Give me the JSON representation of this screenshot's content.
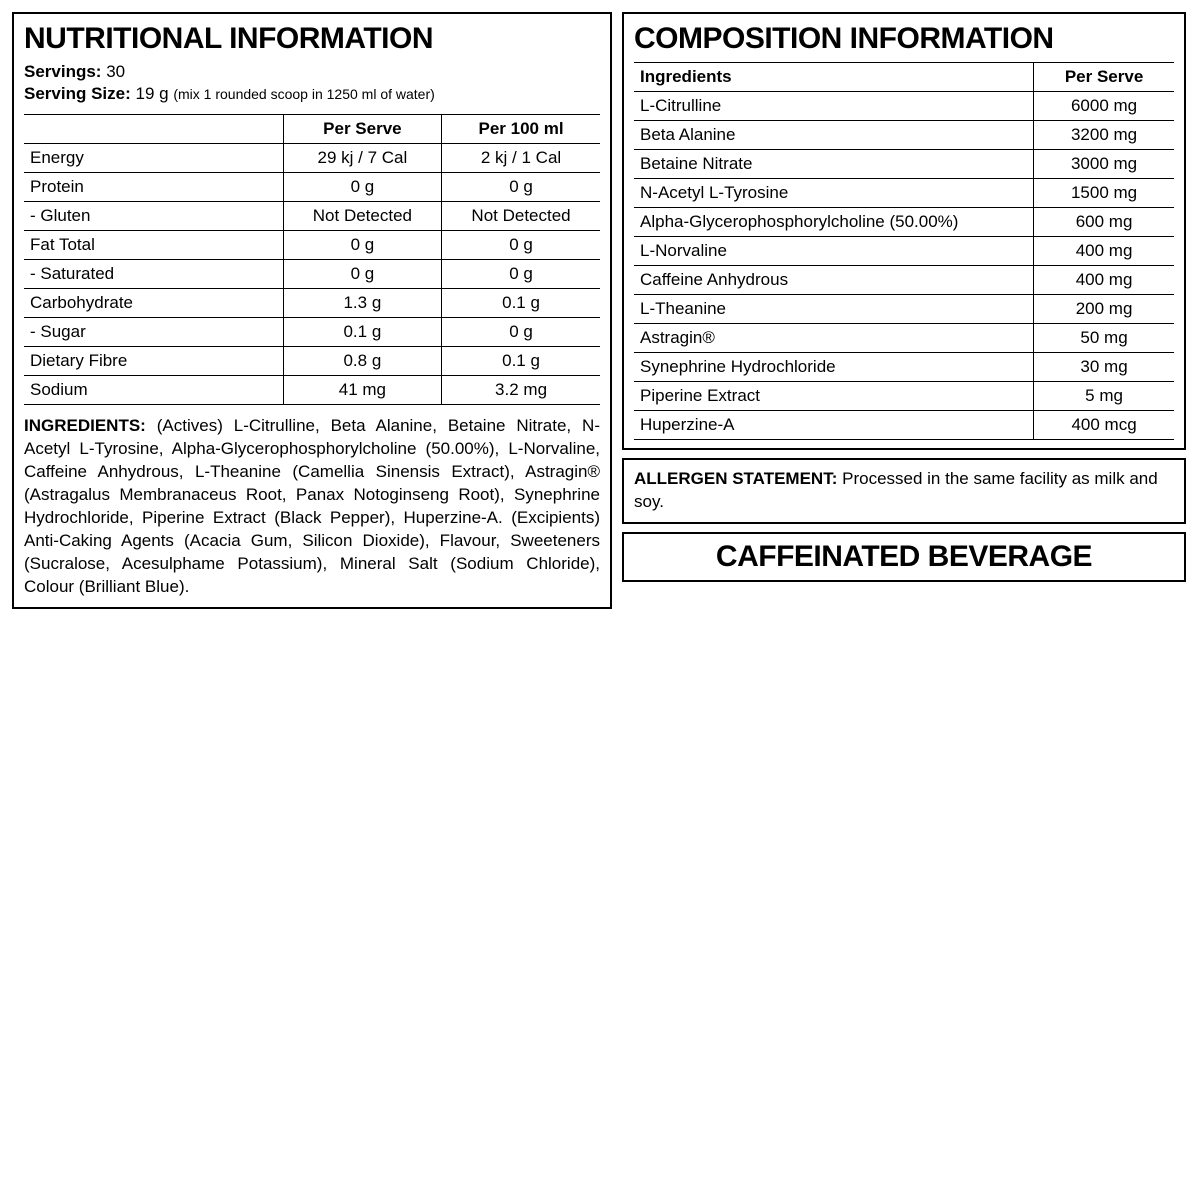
{
  "nutritional": {
    "title": "NUTRITIONAL INFORMATION",
    "servings_label": "Servings:",
    "servings_value": "30",
    "serving_size_label": "Serving Size:",
    "serving_size_value": "19 g",
    "serving_note": "(mix 1 rounded scoop in 1250 ml of water)",
    "headers": {
      "col1": "",
      "col2": "Per Serve",
      "col3": "Per 100 ml"
    },
    "rows": [
      {
        "label": "Energy",
        "serve": "29 kj / 7 Cal",
        "per100": "2 kj / 1 Cal"
      },
      {
        "label": "Protein",
        "serve": "0 g",
        "per100": "0 g"
      },
      {
        "label": "- Gluten",
        "serve": "Not Detected",
        "per100": "Not Detected"
      },
      {
        "label": "Fat Total",
        "serve": "0 g",
        "per100": "0 g"
      },
      {
        "label": "- Saturated",
        "serve": "0 g",
        "per100": "0 g"
      },
      {
        "label": "Carbohydrate",
        "serve": "1.3 g",
        "per100": "0.1 g"
      },
      {
        "label": "- Sugar",
        "serve": "0.1 g",
        "per100": "0 g"
      },
      {
        "label": "Dietary Fibre",
        "serve": "0.8 g",
        "per100": "0.1 g"
      },
      {
        "label": "Sodium",
        "serve": "41 mg",
        "per100": "3.2 mg"
      }
    ],
    "ingredients_label": "INGREDIENTS:",
    "ingredients_text": "(Actives) L-Citrulline, Beta Alanine, Betaine Nitrate, N-Acetyl L-Tyrosine, Alpha-Glycerophosphorylcholine (50.00%), L-Norvaline, Caffeine Anhydrous, L-Theanine (Camellia Sinensis Extract), Astragin® (Astragalus Membranaceus Root, Panax Notoginseng Root), Synephrine Hydrochloride, Piperine Extract (Black Pepper), Huperzine-A. (Excipients) Anti-Caking Agents (Acacia Gum, Silicon Dioxide), Flavour, Sweeteners (Sucralose, Acesulphame Potassium), Mineral Salt (Sodium Chloride), Colour (Brilliant Blue)."
  },
  "composition": {
    "title": "COMPOSITION INFORMATION",
    "headers": {
      "col1": "Ingredients",
      "col2": "Per Serve"
    },
    "rows": [
      {
        "name": "L-Citrulline",
        "amount": "6000 mg"
      },
      {
        "name": "Beta Alanine",
        "amount": "3200 mg"
      },
      {
        "name": "Betaine Nitrate",
        "amount": "3000 mg"
      },
      {
        "name": "N-Acetyl L-Tyrosine",
        "amount": "1500 mg"
      },
      {
        "name": "Alpha-Glycerophosphorylcholine (50.00%)",
        "amount": "600 mg"
      },
      {
        "name": "L-Norvaline",
        "amount": "400 mg"
      },
      {
        "name": "Caffeine Anhydrous",
        "amount": "400 mg"
      },
      {
        "name": "L-Theanine",
        "amount": "200 mg"
      },
      {
        "name": "Astragin®",
        "amount": "50 mg"
      },
      {
        "name": "Synephrine Hydrochloride",
        "amount": "30 mg"
      },
      {
        "name": "Piperine Extract",
        "amount": "5 mg"
      },
      {
        "name": "Huperzine-A",
        "amount": "400 mcg"
      }
    ]
  },
  "allergen": {
    "label": "ALLERGEN STATEMENT:",
    "text": "Processed in the same facility as milk and soy."
  },
  "caffeinated": "CAFFEINATED BEVERAGE",
  "style": {
    "border_color": "#000000",
    "background": "#ffffff",
    "title_fontsize": 30,
    "body_fontsize": 17,
    "note_fontsize": 14
  }
}
